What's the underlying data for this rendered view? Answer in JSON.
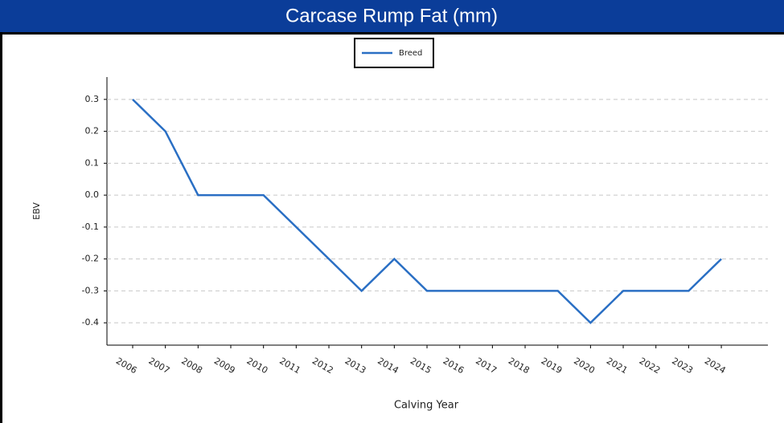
{
  "chart_data": {
    "type": "line",
    "title": "Carcase Rump Fat (mm)",
    "x_label": "Calving Year",
    "y_label": "EBV",
    "categories": [
      "2006",
      "2007",
      "2008",
      "2009",
      "2010",
      "2011",
      "2012",
      "2013",
      "2014",
      "2015",
      "2016",
      "2017",
      "2018",
      "2019",
      "2020",
      "2021",
      "2022",
      "2023",
      "2024"
    ],
    "series": [
      {
        "name": "Breed",
        "color": "#2a6fc4",
        "values": [
          0.3,
          0.2,
          0,
          0,
          0,
          -0.1,
          -0.2,
          -0.3,
          -0.2,
          -0.3,
          -0.3,
          -0.3,
          -0.3,
          -0.3,
          -0.4,
          -0.3,
          -0.3,
          -0.3,
          -0.2
        ]
      }
    ],
    "ylim": [
      -0.47,
      0.37
    ],
    "yticks": [
      0.3,
      0.2,
      0.1,
      {
        "value": 0,
        "label": "0.0"
      },
      -0.1,
      -0.2,
      -0.3,
      -0.4
    ],
    "grid": true,
    "legend": "top"
  }
}
